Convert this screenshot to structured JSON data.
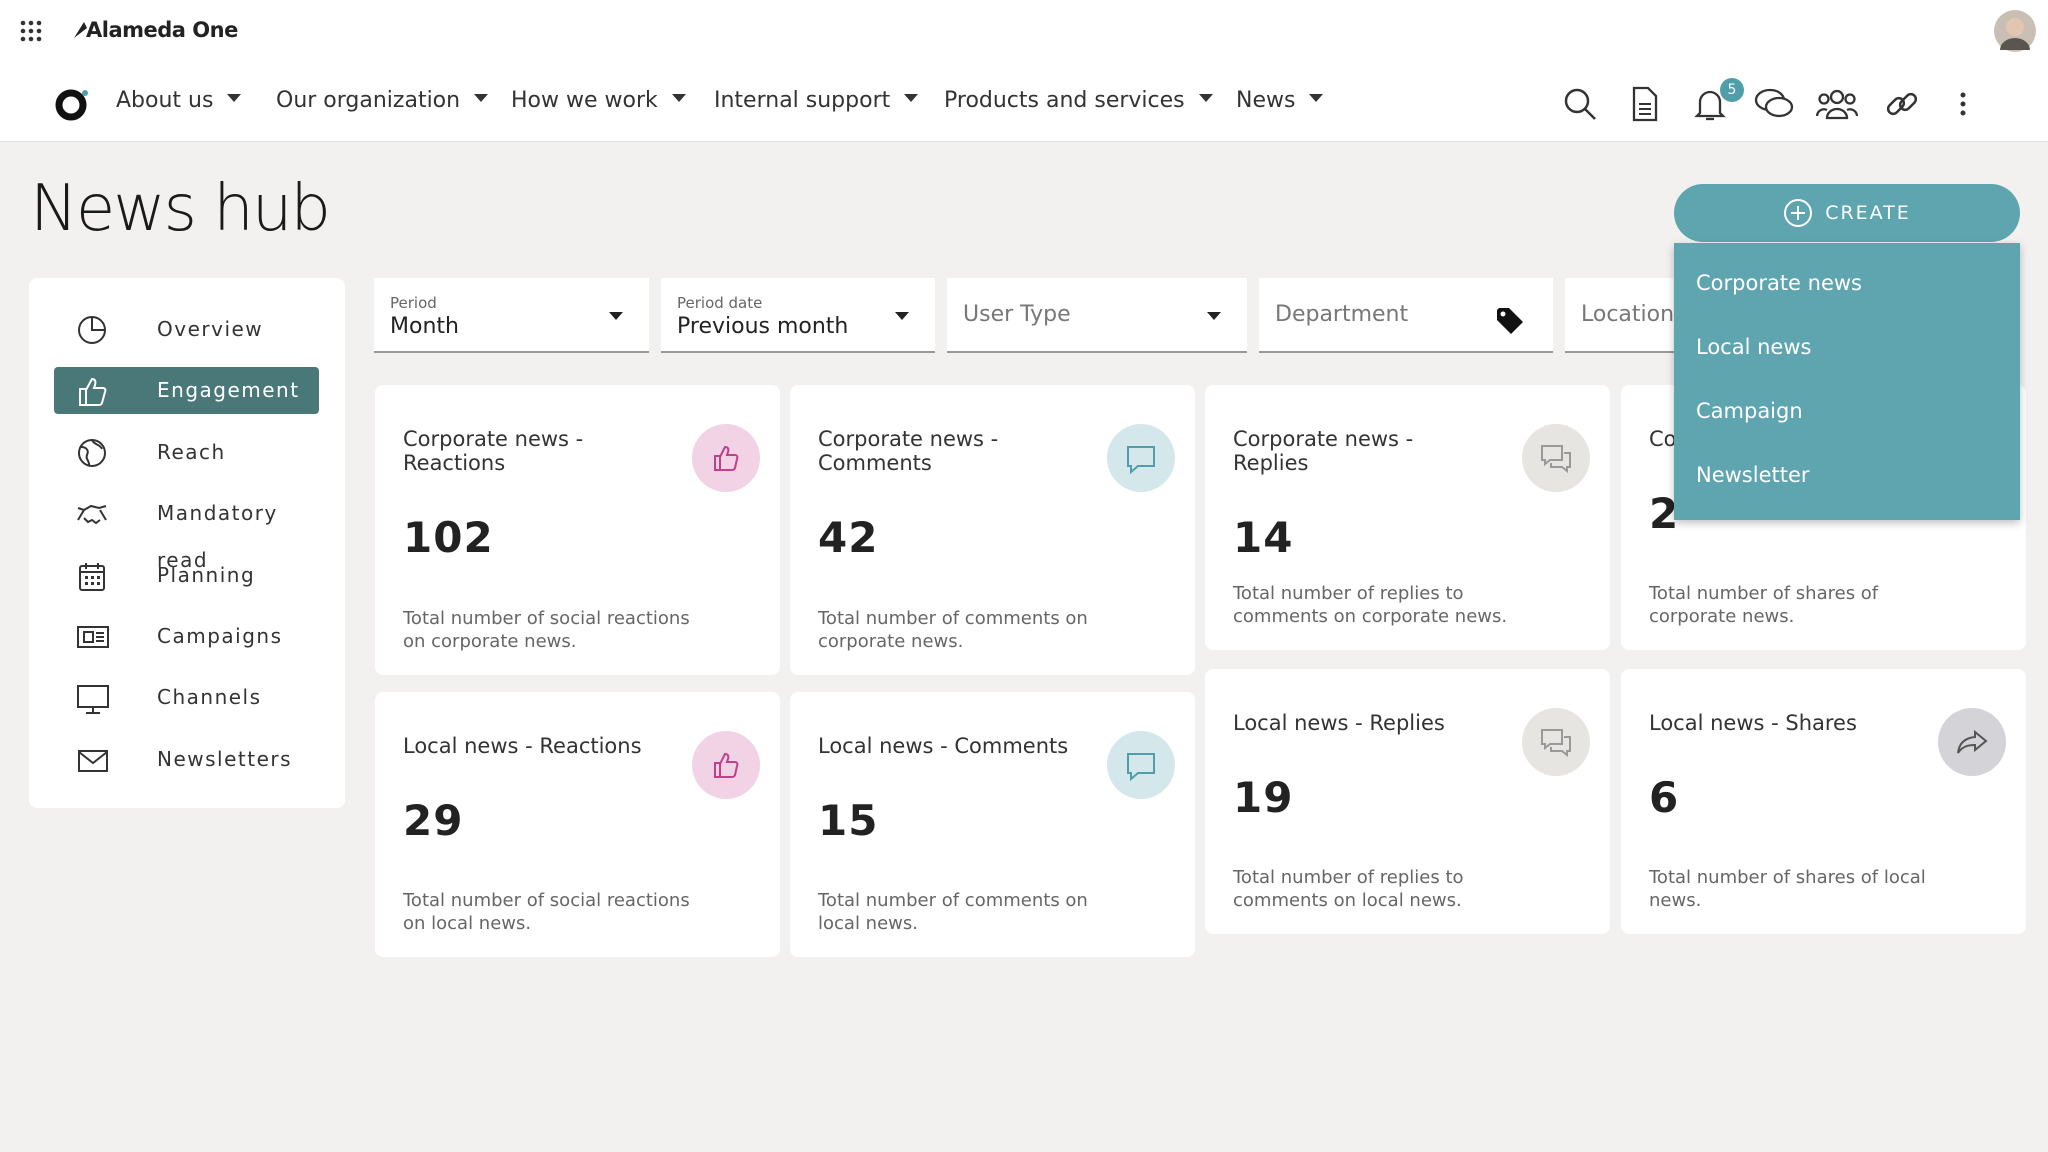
{
  "app": {
    "name": "Alameda One",
    "notifications": "5"
  },
  "nav": [
    "About us",
    "Our organization",
    "How we work",
    "Internal support",
    "Products and services",
    "News"
  ],
  "page": {
    "title": "News hub"
  },
  "create": {
    "label": "CREATE",
    "menu": [
      "Corporate news",
      "Local news",
      "Campaign",
      "Newsletter"
    ]
  },
  "sidebar": {
    "items": [
      "Overview",
      "Engagement",
      "Reach",
      "Mandatory read",
      "Planning",
      "Campaigns",
      "Channels",
      "Newsletters"
    ],
    "active": 1
  },
  "filters": [
    {
      "label": "Period",
      "value": "Month"
    },
    {
      "label": "Period date",
      "value": "Previous month"
    },
    {
      "placeholder": "User Type"
    },
    {
      "placeholder": "Department"
    },
    {
      "placeholder": "Location"
    }
  ],
  "cards": [
    {
      "title": "Corporate news - Reactions",
      "value": 102,
      "description": "Total number of social reactions on corporate news."
    },
    {
      "title": "Corporate news - Comments",
      "value": 42,
      "description": "Total number of comments on corporate news."
    },
    {
      "title": "Corporate news - Replies",
      "value": 14,
      "description": "Total number of replies to comments on corporate news."
    },
    {
      "title": "Corporate news - Shares",
      "value": 2,
      "description": "Total number of shares of corporate news."
    },
    {
      "title": "Local news - Reactions",
      "value": 29,
      "description": "Total number of social reactions on local news."
    },
    {
      "title": "Local news - Comments",
      "value": 15,
      "description": "Total number of comments on local news."
    },
    {
      "title": "Local news - Replies",
      "value": 19,
      "description": "Total number of replies to comments on local news."
    },
    {
      "title": "Local news - Shares",
      "value": 6,
      "description": "Total number of shares of local news."
    }
  ]
}
